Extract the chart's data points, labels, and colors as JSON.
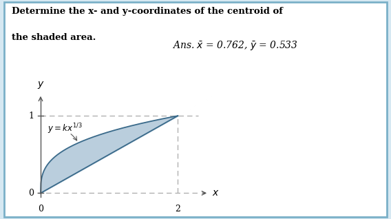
{
  "title_line1": "Determine the x- and y-coordinates of the centroid of",
  "title_line2": "the shaded area.",
  "ans_text": "Ans. $\\bar{x}$ = 0.762, $\\bar{y}$ = 0.533",
  "x_max": 2,
  "y_max": 1,
  "shade_color": "#aec6d8",
  "shade_alpha": 0.85,
  "curve_color": "#3a6a8a",
  "border_color": "#7ab0c8",
  "dashed_color": "#aaaaaa",
  "axis_color": "#555555",
  "fig_bg": "#d6e8f2",
  "text_color": "#111111"
}
